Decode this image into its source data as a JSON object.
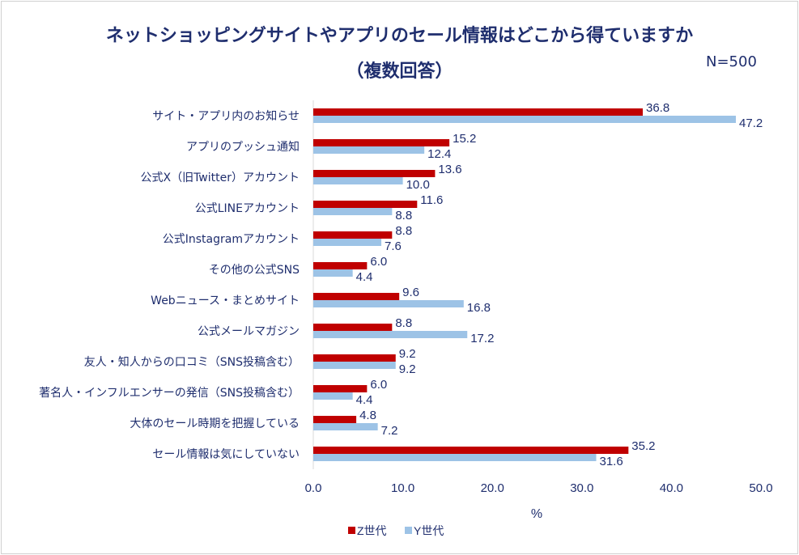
{
  "chart_data": {
    "type": "bar",
    "orientation": "horizontal",
    "title": "ネットショッピングサイトやアプリのセール情報はどこから得ていますか",
    "subtitle": "（複数回答）",
    "annotation": "N=500",
    "xlabel": "%",
    "xlim": [
      0,
      50
    ],
    "xticks": [
      "0.0",
      "10.0",
      "20.0",
      "30.0",
      "40.0",
      "50.0"
    ],
    "grid": false,
    "legend_position": "bottom",
    "categories": [
      "サイト・アプリ内のお知らせ",
      "アプリのプッシュ通知",
      "公式X（旧Twitter）アカウント",
      "公式LINEアカウント",
      "公式Instagramアカウント",
      "その他の公式SNS",
      "Webニュース・まとめサイト",
      "公式メールマガジン",
      "友人・知人からの口コミ（SNS投稿含む）",
      "著名人・インフルエンサーの発信（SNS投稿含む）",
      "大体のセール時期を把握している",
      "セール情報は気にしていない"
    ],
    "series": [
      {
        "name": "Z世代",
        "color": "#c00000",
        "values": [
          36.8,
          15.2,
          13.6,
          11.6,
          8.8,
          6.0,
          9.6,
          8.8,
          9.2,
          6.0,
          4.8,
          35.2
        ]
      },
      {
        "name": "Y世代",
        "color": "#9dc3e6",
        "values": [
          47.2,
          12.4,
          10.0,
          8.8,
          7.6,
          4.4,
          16.8,
          17.2,
          9.2,
          4.4,
          7.2,
          31.6
        ]
      }
    ]
  }
}
